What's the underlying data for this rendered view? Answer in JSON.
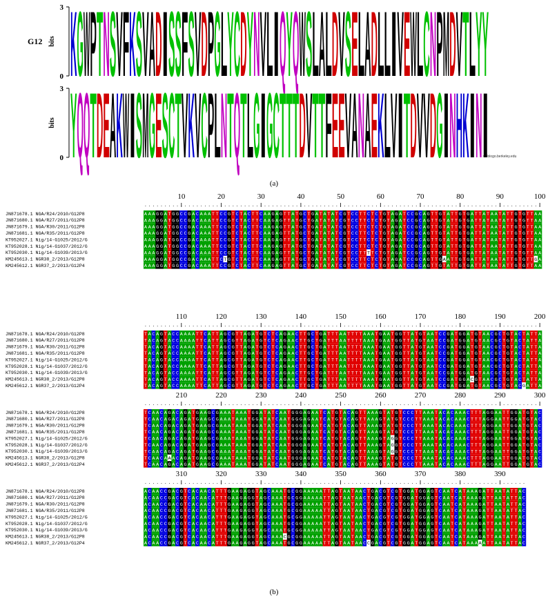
{
  "figure_a": {
    "label": "G12",
    "axis_label": "bits",
    "ylim": [
      0,
      3
    ],
    "yticks": [
      0,
      3
    ],
    "rows": [
      {
        "letters": [
          "K",
          "G",
          "W",
          "P",
          "T",
          "N",
          "S",
          "V",
          "F",
          "K",
          "S",
          "V",
          "A",
          "D",
          "I",
          "S",
          "S",
          "F",
          "S",
          "V",
          "D",
          "P",
          "G",
          "L",
          "Y",
          "C",
          "D",
          "Y",
          "N",
          "V",
          "L",
          "I",
          "Q",
          "Y",
          "Q",
          "W",
          "S",
          "L",
          "A",
          "L",
          "D",
          "V",
          "S",
          "E",
          "L",
          "A",
          "D",
          "L",
          "L",
          "I",
          "V",
          "E",
          "W",
          "L",
          "C",
          "N",
          "P",
          "M",
          "D",
          "V",
          "T",
          "L",
          "Y",
          "Y"
        ],
        "heights": [
          2.9,
          2.9,
          2.9,
          2.9,
          2.9,
          2.9,
          2.9,
          2.9,
          2.9,
          2.9,
          2.9,
          2.9,
          2.9,
          2.9,
          2.9,
          2.9,
          2.9,
          2.9,
          2.9,
          2.9,
          2.9,
          2.9,
          2.9,
          2.9,
          2.9,
          2.9,
          2.9,
          2.9,
          2.9,
          2.9,
          2.9,
          2.9,
          2.9,
          2.9,
          2.9,
          2.9,
          2.9,
          2.9,
          2.9,
          2.9,
          2.9,
          2.9,
          2.9,
          2.9,
          2.9,
          2.9,
          2.9,
          2.9,
          2.9,
          2.9,
          2.9,
          2.9,
          2.9,
          2.9,
          2.9,
          2.9,
          2.9,
          2.9,
          2.9,
          2.9,
          2.9,
          2.9,
          2.9,
          2.9
        ]
      },
      {
        "letters": [
          "Y",
          "Q",
          "Q",
          "T",
          "D",
          "E",
          "A",
          "K",
          "W",
          "I",
          "S",
          "M",
          "G",
          "E",
          "S",
          "C",
          "T",
          "V",
          "K",
          "V",
          "C",
          "P",
          "L",
          "N",
          "T",
          "Q",
          "T",
          "L",
          "G",
          "I",
          "G",
          "C",
          "T",
          "T",
          "T",
          "D",
          "V",
          "T",
          "T",
          "F",
          "E",
          "E",
          "V",
          "A",
          "N",
          "A",
          "E",
          "K",
          "L",
          "V",
          "I",
          "T",
          "D",
          "V",
          "V",
          "D",
          "G",
          "I",
          "N",
          "H",
          "K",
          "I",
          "N",
          "I"
        ],
        "heights": [
          2.9,
          2.9,
          2.9,
          2.9,
          2.9,
          2.9,
          2.9,
          2.9,
          2.9,
          2.9,
          2.9,
          2.9,
          2.9,
          2.9,
          2.9,
          2.9,
          2.9,
          2.9,
          2.9,
          2.9,
          2.9,
          2.9,
          2.9,
          2.9,
          2.9,
          2.9,
          2.9,
          2.9,
          2.9,
          2.9,
          2.9,
          2.9,
          2.9,
          2.9,
          2.9,
          2.9,
          2.9,
          2.9,
          2.9,
          2.9,
          2.9,
          2.9,
          2.9,
          2.9,
          2.9,
          2.9,
          2.9,
          2.9,
          2.9,
          2.9,
          2.9,
          2.9,
          2.9,
          2.9,
          2.9,
          2.9,
          2.9,
          2.9,
          2.9,
          2.9,
          2.9,
          2.9,
          2.9,
          2.9
        ]
      }
    ],
    "credit": "weblogo.berkeley.edu",
    "caption": "(a)"
  },
  "figure_b": {
    "names": [
      "JN871678.1 NGA/R24/2010/G12P8",
      "JN871680.1 NGA/R27/2011/G12P8",
      "JN871679.1 NGA/R30/2011/G12P8",
      "JN871681.1 NGA/R35/2011/G12P8",
      "KT952027.1 Nig/14-G1025/2012/G",
      "KT952028.1 Nig/14-G1037/2012/G",
      "KT952030.1 Nig/14-G1039/2013/G",
      "KM245613.1 NGR38_2/2013/G12P8",
      "KM245612.1 NGR37_2/2013/G12P4"
    ],
    "blocks": [
      {
        "ticks": [
          10,
          20,
          30,
          40,
          50,
          60,
          70,
          80,
          90,
          100
        ],
        "sequences": [
          "AAAGGATGGCCGACAAATTCCGTCTACTTCAAGAGTTATGCTGATATATCGTCCTTCTCTGTAGATCCGCAGTTGTATTGTGATTATAATATTGTGTTAA",
          "AAAGGATGGCCGACAAATTCCGTCTACTTCAAGAGTTATGCTGATATATCGTCCTTCTCTGTAGATCCGCAGTTGTATTGTGATTATAATATTGTGTTAA",
          "AAAGGATGGCCGACAAATTCCGTCTACTTCAAGAGTTATGCTGATATATCGTCCTTCTCTGTAGATCCGCAGTTGTATTGTGATTATAATATTGTGTTAA",
          "AAAGGATGGCCGACAAATTCCGTCTACTTCAAGAGTTATGCTGATATATCGTCCTTCTCTGTAGATCCGCAGTTGTATTGTGATTATAATATTGTGTTAA",
          "AAAGGATGGCCGACAAATTCCGTCTACTTCAAGAGTTATGCTGATATATCGTCCTTCTCTGTAGATCCGCAGTTGTATTGTGATTATAATATTGTGTTAA",
          "AAAGGATGGCCGACAAATTCCGTCTACTTCAAGAGTTATGCTGATATATCGTCCTTCTCTGTAGATCCGCAGTTGTATTGTGATTATAATATTGTGTTAA",
          "AAAGGATGGCCGACAAATTCCGTCTACTTCAAGAGTTATGCTGATATATCGTCCTTTTCTGTAGATCCGCAGTTGTATTGTGATTATAATATTGTGTTAA",
          "AAAGGATGGCCGACAAATTCTGTCTACTTCAAGAGTTATGCTGATATATCGTCCTTCTCTGTAGATCCGCAGTTGAATTGTGATTATAATATTGTGTTGA",
          "AAAGGATGGCCGACAAATTCCGTCTACTTCAAGAGTTATGCTGATATATCGTCCTTCTCTGTAGATCCGCAGTTGTATTGTGATTATAATATTGTGTTAA"
        ]
      },
      {
        "ticks": [
          110,
          120,
          130,
          140,
          150,
          160,
          170,
          180,
          190,
          200
        ],
        "sequences": [
          "TACAGTACCAAAATTCATTAGCGTTAGATGTCTCAGAACTTGCTGATTTAATTTTAAATGAATGGTTATGTAATCCGATGGATGTAACGCTGTACTATTA",
          "TACAGTACCAAAATTCATTAGCGTTAGATGTCTCAGAACTTGCTGATTTAATTTTAAATGAATGGTTATGTAATCCGATGGATGTAACGCTGTACTATTA",
          "TACAGTACCAAAATTCATTAGCGTTAGATGTCTCAGAACTTGCTGATTTAATTTTAAATGAATGGTTATGTAATCCGATGGATGTAACGCTGTACTATTA",
          "TACAGTACCAAAATTCATTAGCGTTAGATGTCTCAGAACTTGCTGATTTAATTTTAAATGAATGGTTATGTAATCCGATGGATGTAACGCTGTACTATTA",
          "TACAGTACCAAAATTCATTAGCGTTAGATGTCTCAGAACTTGCTGATTTAATTTTAAATGAATGGTTATGTAATCCGATGGATGTAACGCTGTACTATTA",
          "TACAGTACCAAAATTCATTAGCGTTAGATGTCTCAGAACTTGCTGATTTAATTTTAAATGAATGGTTATGTAATCCGATGGATGTAACGCTGTACTATTA",
          "TACAGTACCAAAATTCATTAGCGTTAGATGTCTCAGAACTTGCTGATTTAATTTTAAATGAATGGTTATGTAATCCGATGGATGTAACGCTGTACTATTA",
          "TACAGTACCAAAATTCATTAGCGTTAGATGTCTCAGAACTTGCTGATTTAATTTTAAATGAATGGTTATGTAATCCGATGGACGTAACGCTGTACTATTA",
          "TACAGTACCAAAATTCATTAGCGTTAGATGTCTCAGAACTTGCTGATTTAATTTTAAATGAATGGTTATGTAATCCGATGGATGTAACGCTGTACGATTA"
        ]
      },
      {
        "ticks": [
          210,
          220,
          230,
          240,
          250,
          260,
          270,
          280,
          290,
          300
        ],
        "sequences": [
          "TCAACAGACAGATGAAGCGAAATAAATGGATATCAATGGGAGAATCATGTACAGTTAAAGTATGTCCCTTAAATACACAAACTTTAGGAATTGGATGTAC",
          "TCAACAGACAGATGAAGCGAAATAAATGGATATCAATGGGAGAATCATGTACAGTTAAAGTATGTCCCTTAAATACACAAACTTTAGGAATTGGATGTAC",
          "TCAACAGACAGATGAAGCGAAATAAATGGATATCAATGGGAGAATCATGTACAGTTAAAGTATGTCCCTTAAATACACAAACTTTAGGAATTGGATGTAC",
          "TCAACAGACAGATGAAGCGAAATAAATGGATATCAATGGGAGAATCATGTACAGTTAAAGTATGTCCCTTAAATACACAAACTTTAGGAATTGGATGTAC",
          "TCAACAGACAGATGAAGCGAAATAAATGGATATCAATGGGAGAATCATGTACAGTTAAAGTAGGTCCCTTAAATACACAAACTTTAGGAATTGGATGTAC",
          "TCAACAGACAGATGAAGCGAAATAAATGGATATCAATGGGAGAATCATGTACAGTTAAAGTAGGTCCCTTAAATACACAAACTTTAGGAATTGGATGTAC",
          "TCAACAGACAGATGAAGCGAAATAAATGGATATCAATGGGAGAATCATGTACAGTTAAAGTAGGTCCCTTAAATACACAAACTTTAGGAATTGGATGTAC",
          "TCAACAAACAGATGAAGCGAAATAAATGGATATCAATGGGAGAATCATGTACAGTTAAAGTATGTCCCTTAAATACACAAACTTTAGGAATTGGATGTAC",
          "TCAACAGACAGATGAAGCGAAATAAATGGATATCAATGGGAGAATCATGTACAGTTAAAGTATGTCCCTTAAATACACAAACTTTAGGAATTGGATGTAC"
        ]
      },
      {
        "ticks": [
          310,
          320,
          330,
          340,
          350,
          360,
          370,
          380,
          390
        ],
        "sequences": [
          "ACAACCGACGTCACAACATTTGAAGAGGTAGCAAATGCGGAAAAATTAGTAATAACTGACGTCGTGGATGGAGTCAATCATAAAGATTAATATTAC",
          "ACAACCGACGTCACAACATTTGAAGAGGTAGCAAATGCGGAAAAATTAGTAATAACTGACGTCGTGGATGGAGTCAATCATAAAGATTAATATTAC",
          "ACAACCGACGTCACAACATTTGAAGAGGTAGCAAATGCGGAAAAATTAGTAATAACTGACGTCGTGGATGGAGTCAATCATAAAGATTAATATTAC",
          "ACAACCGACGTCACAACATTTGAAGAGGTAGCAAATGCGGAAAAATTAGTAATAACTGACGTCGTGGATGGAGTCAATCATAAAGATTAATATTAC",
          "ACAACCGACGTCACAACATTTGAAGAGGTAGCAAATGCGGAAAAATTAGTAATAACTGACGTCGTGGATGGAGTCAATCATAAAGATTAATATTAC",
          "ACAACCGACGTCACAACATTTGAAGAGGTAGCAAATGCGGAAAAATTAGTAATAACTGACGTCGTGGATGGAGTCAATCATAAAGATTAATATTAC",
          "ACAACCGACGTCACAACATTTGAAGAGGTAGCAAATGCGGAAAAATTAGTAATAACTGACGTCGTGGATGGAGTCAATCATAAAGATTAATATTAC",
          "ACAACCGACGTCACAACATTTGAAGAGGTAGCAAACGCGGAAAAATTAGTAATAACTGACGTCGTGGATGGAGTCAATCATAAAGATTAATATTAC",
          "ACAACCGACGTCACAACATTTGAAGAGGTAGCAAATGCGGAAAAATTAGTAATAACCGACGTCGTGGATGGAGTCAATCATAAAAATTAATATTAC"
        ]
      }
    ],
    "caption": "(b)"
  }
}
